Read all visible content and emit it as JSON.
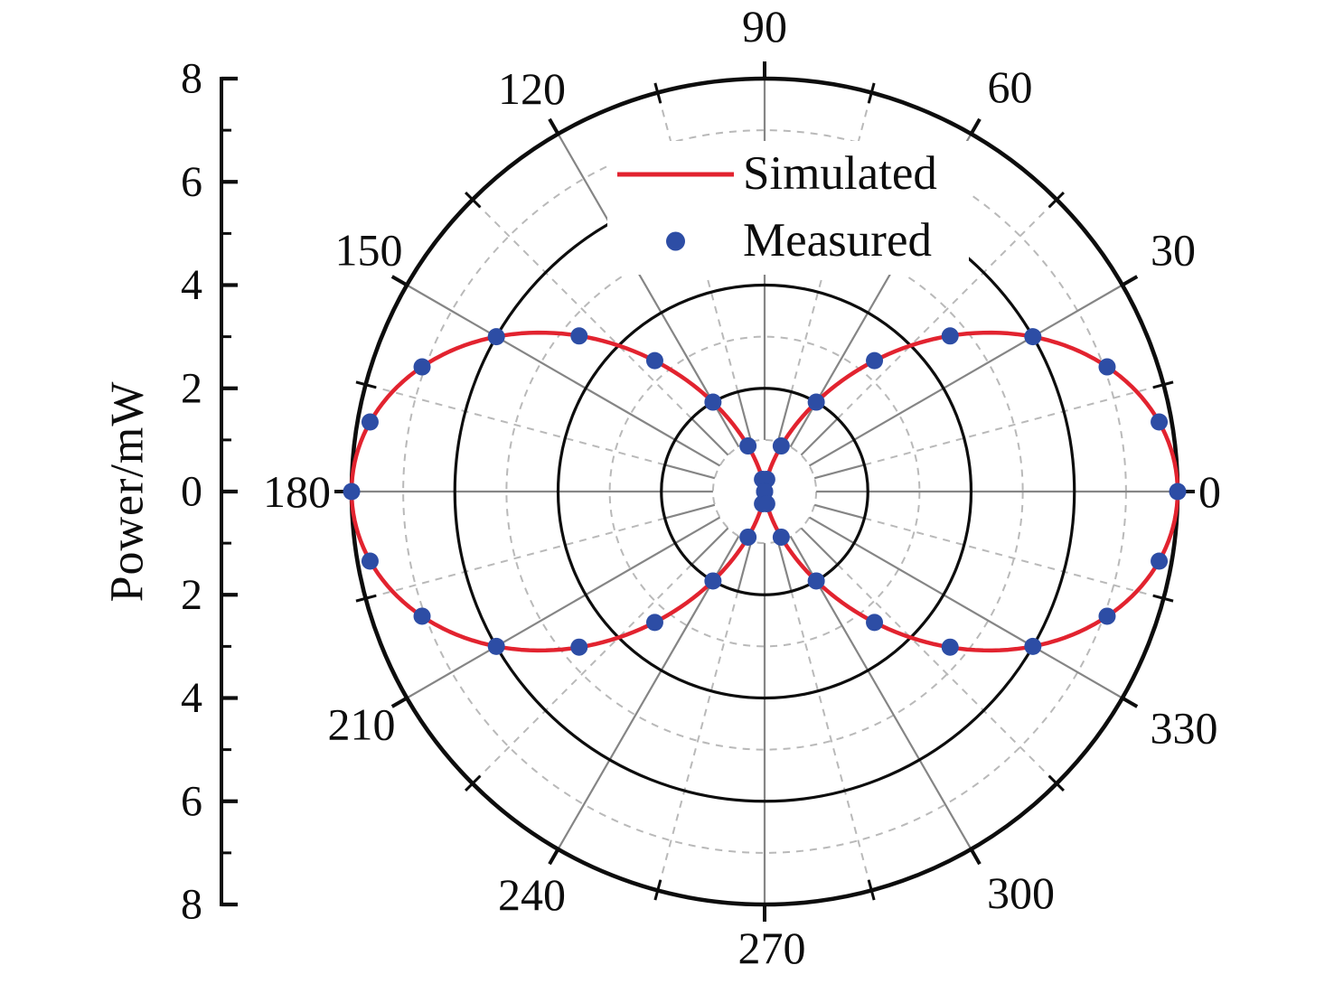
{
  "figure": {
    "background": "#ffffff",
    "y_axis": {
      "label": "Power/mW",
      "tick_labels": [
        "8",
        "6",
        "4",
        "2",
        "0",
        "2",
        "4",
        "6",
        "8"
      ],
      "major_tick_values": [
        8,
        6,
        4,
        2,
        0,
        -2,
        -4,
        -6,
        -8
      ],
      "minor_tick_values": [
        7,
        5,
        3,
        1,
        -1,
        -3,
        -5,
        -7
      ]
    },
    "angle_labels": [
      "0",
      "30",
      "60",
      "90",
      "120",
      "150",
      "180",
      "210",
      "240",
      "270",
      "300",
      "330"
    ],
    "legend": {
      "items": [
        {
          "label": "Simulated",
          "marker": "line",
          "color": "#e2232f"
        },
        {
          "label": "Measured",
          "marker": "dot",
          "color": "#2d4da5"
        }
      ]
    }
  },
  "chart_data": {
    "type": "line",
    "subtype": "polar",
    "title": "",
    "radial_label": "Power/mW",
    "radial_range": [
      0,
      8
    ],
    "radial_units": "mW",
    "radial_major_gridlines": [
      2,
      4,
      6,
      8
    ],
    "radial_minor_gridlines": [
      1,
      3,
      5,
      7
    ],
    "angular_major_gridlines_deg": [
      0,
      30,
      60,
      90,
      120,
      150,
      180,
      210,
      240,
      270,
      300,
      330
    ],
    "angular_minor_gridlines_deg": [
      15,
      45,
      75,
      105,
      135,
      165,
      195,
      225,
      255,
      285,
      315,
      345
    ],
    "grid": true,
    "legend_position": "inside-top-center",
    "series": [
      {
        "name": "Simulated",
        "type": "line",
        "color": "#e2232f",
        "model": "r(theta) = 8*cos^2(theta) mW",
        "amplitude_mW": 8
      },
      {
        "name": "Measured",
        "type": "scatter",
        "color": "#2d4da5",
        "angle_step_deg": 10,
        "angles_deg": [
          0,
          10,
          20,
          30,
          40,
          50,
          60,
          70,
          80,
          90,
          100,
          110,
          120,
          130,
          140,
          150,
          160,
          170,
          180,
          190,
          200,
          210,
          220,
          230,
          240,
          250,
          260,
          270,
          280,
          290,
          300,
          310,
          320,
          330,
          340,
          350
        ],
        "power_mW": [
          8.0,
          7.76,
          7.06,
          6.0,
          4.69,
          3.31,
          2.0,
          0.94,
          0.24,
          0.0,
          0.24,
          0.94,
          2.0,
          3.31,
          4.69,
          6.0,
          7.06,
          7.76,
          8.0,
          7.76,
          7.06,
          6.0,
          4.69,
          3.31,
          2.0,
          0.94,
          0.24,
          0.0,
          0.24,
          0.94,
          2.0,
          3.31,
          4.69,
          6.0,
          7.06,
          7.76
        ]
      }
    ]
  }
}
